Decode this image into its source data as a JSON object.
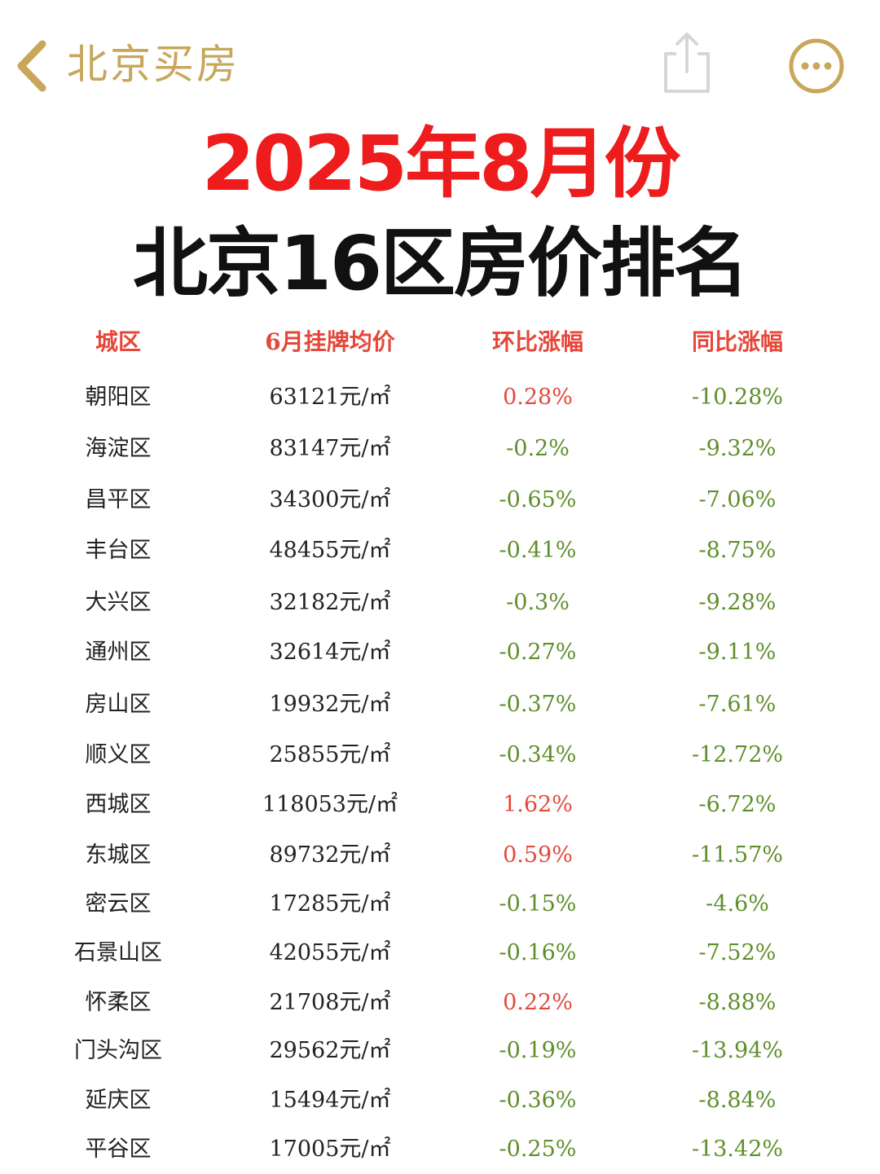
{
  "nav": {
    "title": "北京买房",
    "back_icon": "chevron-left-icon",
    "share_icon": "share-icon",
    "more_icon": "more-icon",
    "accent_color": "#c8a65a"
  },
  "headline": {
    "line1": "2025年8月份",
    "line2": "北京16区房价排名",
    "line1_color": "#ee1c1c",
    "line2_color": "#111111"
  },
  "table": {
    "headers": [
      "城区",
      "6月挂牌均价",
      "环比涨幅",
      "同比涨幅"
    ],
    "header_color": "#e5473a",
    "up_color": "#e14a3c",
    "down_color": "#5e8f2a",
    "rows": [
      {
        "district": "朝阳区",
        "price": "63121元/㎡",
        "mom": "0.28%",
        "mom_dir": "up",
        "yoy": "-10.28%"
      },
      {
        "district": "海淀区",
        "price": "83147元/㎡",
        "mom": "-0.2%",
        "mom_dir": "down",
        "yoy": "-9.32%"
      },
      {
        "district": "昌平区",
        "price": "34300元/㎡",
        "mom": "-0.65%",
        "mom_dir": "down",
        "yoy": "-7.06%"
      },
      {
        "district": "丰台区",
        "price": "48455元/㎡",
        "mom": "-0.41%",
        "mom_dir": "down",
        "yoy": "-8.75%"
      },
      {
        "district": "大兴区",
        "price": "32182元/㎡",
        "mom": "-0.3%",
        "mom_dir": "down",
        "yoy": "-9.28%"
      },
      {
        "district": "通州区",
        "price": "32614元/㎡",
        "mom": "-0.27%",
        "mom_dir": "down",
        "yoy": "-9.11%"
      },
      {
        "district": "房山区",
        "price": "19932元/㎡",
        "mom": "-0.37%",
        "mom_dir": "down",
        "yoy": "-7.61%"
      },
      {
        "district": "顺义区",
        "price": "25855元/㎡",
        "mom": "-0.34%",
        "mom_dir": "down",
        "yoy": "-12.72%"
      },
      {
        "district": "西城区",
        "price": "118053元/㎡",
        "mom": "1.62%",
        "mom_dir": "up",
        "yoy": "-6.72%"
      },
      {
        "district": "东城区",
        "price": "89732元/㎡",
        "mom": "0.59%",
        "mom_dir": "up",
        "yoy": "-11.57%"
      },
      {
        "district": "密云区",
        "price": "17285元/㎡",
        "mom": "-0.15%",
        "mom_dir": "down",
        "yoy": "-4.6%"
      },
      {
        "district": "石景山区",
        "price": "42055元/㎡",
        "mom": "-0.16%",
        "mom_dir": "down",
        "yoy": "-7.52%"
      },
      {
        "district": "怀柔区",
        "price": "21708元/㎡",
        "mom": "0.22%",
        "mom_dir": "up",
        "yoy": "-8.88%"
      },
      {
        "district": "门头沟区",
        "price": "29562元/㎡",
        "mom": "-0.19%",
        "mom_dir": "down",
        "yoy": "-13.94%"
      },
      {
        "district": "延庆区",
        "price": "15494元/㎡",
        "mom": "-0.36%",
        "mom_dir": "down",
        "yoy": "-8.84%"
      },
      {
        "district": "平谷区",
        "price": "17005元/㎡",
        "mom": "-0.25%",
        "mom_dir": "down",
        "yoy": "-13.42%"
      }
    ]
  }
}
